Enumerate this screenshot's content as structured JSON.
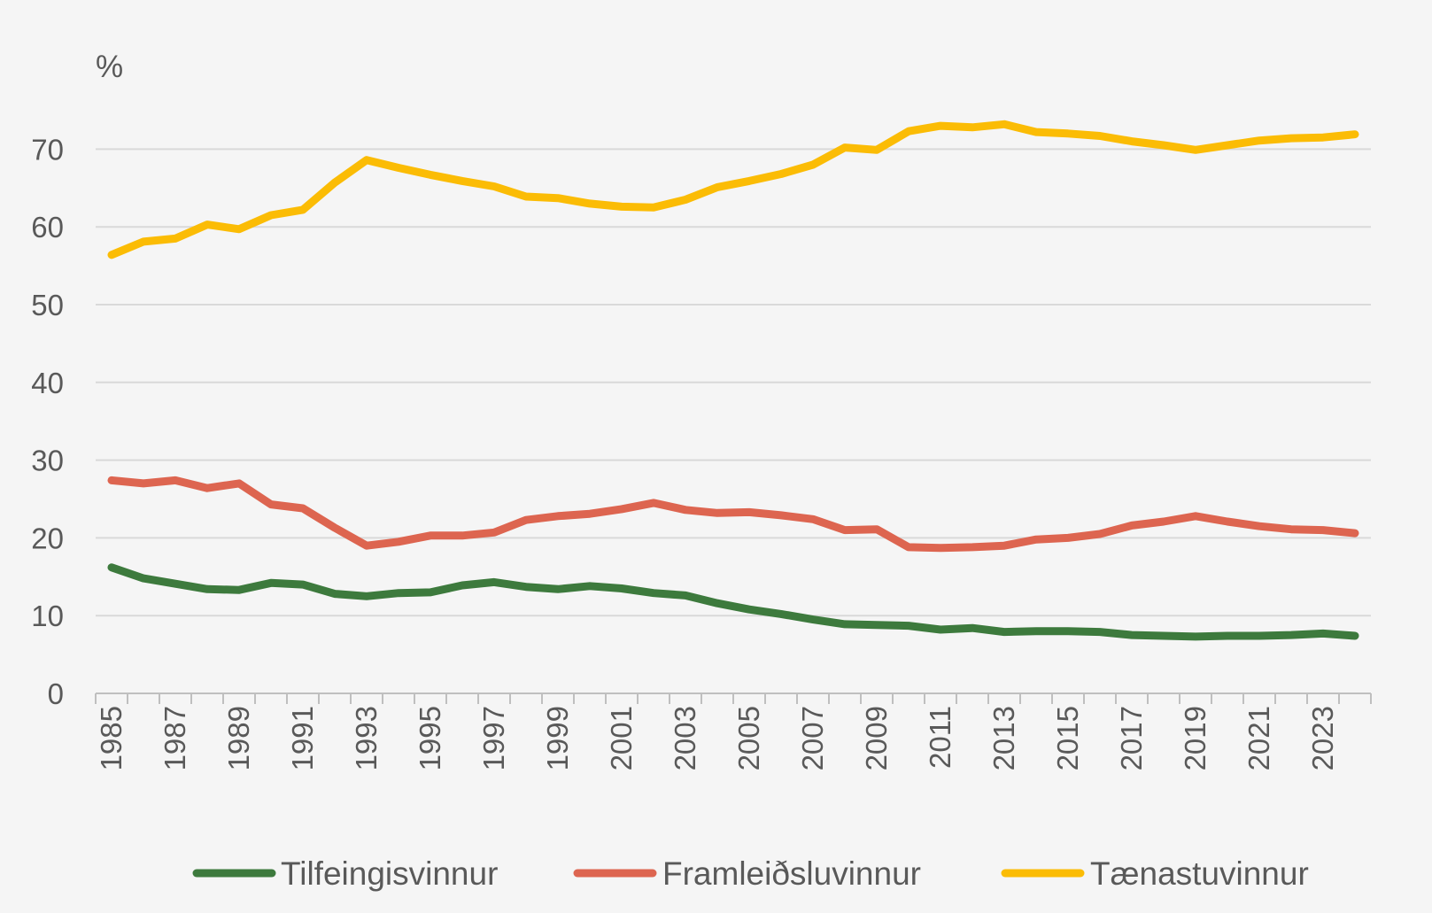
{
  "chart_data": {
    "type": "line",
    "ylabel": "%",
    "ylim": [
      0,
      80
    ],
    "yticks": [
      0,
      10,
      20,
      30,
      40,
      50,
      60,
      70
    ],
    "grid": true,
    "legend_position": "bottom",
    "x": [
      1985,
      1986,
      1987,
      1988,
      1989,
      1990,
      1991,
      1992,
      1993,
      1994,
      1995,
      1996,
      1997,
      1998,
      1999,
      2000,
      2001,
      2002,
      2003,
      2004,
      2005,
      2006,
      2007,
      2008,
      2009,
      2010,
      2011,
      2012,
      2013,
      2014,
      2015,
      2016,
      2017,
      2018,
      2019,
      2020,
      2021,
      2022,
      2023,
      2024
    ],
    "xtick_labels": [
      "1985",
      "1987",
      "1989",
      "1991",
      "1993",
      "1995",
      "1997",
      "1999",
      "2001",
      "2003",
      "2005",
      "2007",
      "2009",
      "2011",
      "2013",
      "2015",
      "2017",
      "2019",
      "2021",
      "2023"
    ],
    "series": [
      {
        "name": "Tilfeingisvinnur",
        "color": "#3d7a3d",
        "values": [
          16.2,
          14.8,
          14.1,
          13.4,
          13.3,
          14.2,
          14.0,
          12.8,
          12.5,
          12.9,
          13.0,
          13.9,
          14.3,
          13.7,
          13.4,
          13.8,
          13.5,
          12.9,
          12.6,
          11.6,
          10.8,
          10.2,
          9.5,
          8.9,
          8.8,
          8.7,
          8.2,
          8.4,
          7.9,
          8.0,
          8.0,
          7.9,
          7.5,
          7.4,
          7.3,
          7.4,
          7.4,
          7.5,
          7.7,
          7.4
        ]
      },
      {
        "name": "Framleiðsluvinnur",
        "color": "#dd6550",
        "values": [
          27.4,
          27.0,
          27.4,
          26.4,
          27.0,
          24.3,
          23.8,
          21.3,
          19.0,
          19.5,
          20.3,
          20.3,
          20.7,
          22.3,
          22.8,
          23.1,
          23.7,
          24.5,
          23.6,
          23.2,
          23.3,
          22.9,
          22.4,
          21.0,
          21.1,
          18.8,
          18.7,
          18.8,
          19.0,
          19.8,
          20.0,
          20.5,
          21.6,
          22.1,
          22.8,
          22.1,
          21.5,
          21.1,
          21.0,
          20.6
        ]
      },
      {
        "name": "Tænastuvinnur",
        "color": "#fbbc05",
        "values": [
          56.4,
          58.1,
          58.5,
          60.3,
          59.7,
          61.5,
          62.2,
          65.7,
          68.6,
          67.6,
          66.7,
          65.9,
          65.2,
          63.9,
          63.7,
          63.0,
          62.6,
          62.5,
          63.5,
          65.1,
          65.9,
          66.8,
          68.0,
          70.2,
          69.9,
          72.3,
          73.0,
          72.8,
          73.2,
          72.2,
          72.0,
          71.7,
          71.0,
          70.5,
          69.9,
          70.5,
          71.1,
          71.4,
          71.5,
          71.9
        ]
      }
    ]
  }
}
